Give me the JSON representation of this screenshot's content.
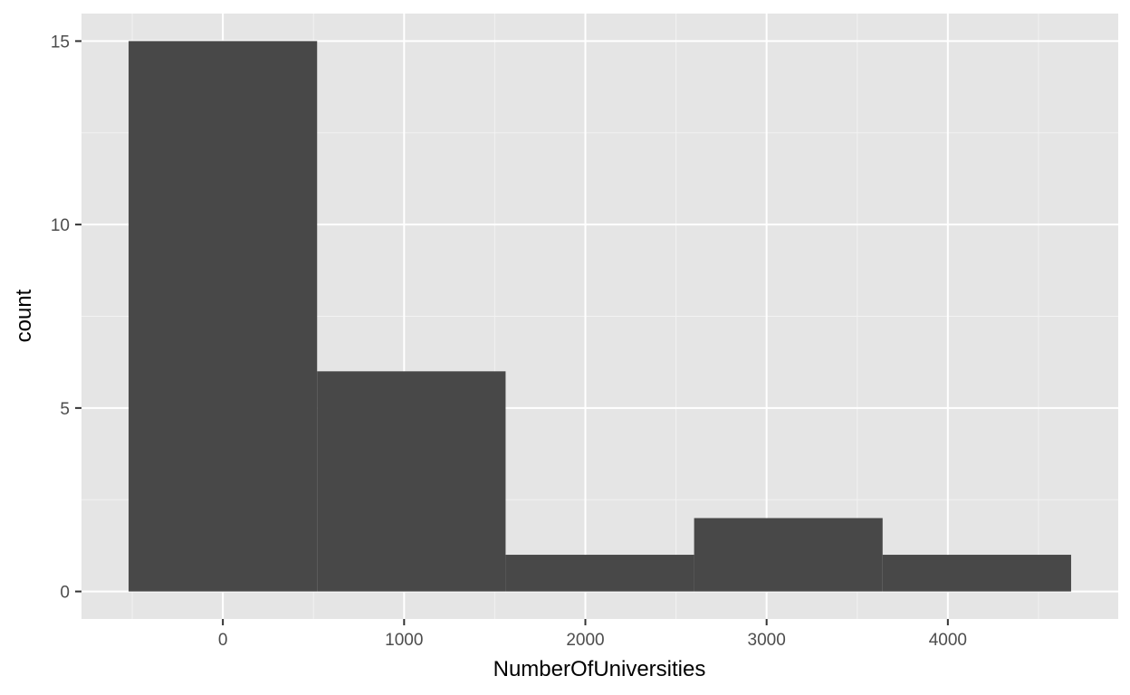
{
  "chart_data": {
    "type": "bar",
    "subtype": "histogram",
    "title": "",
    "xlabel": "NumberOfUniversities",
    "ylabel": "count",
    "bins": [
      {
        "x0": -520,
        "x1": 520,
        "count": 15
      },
      {
        "x0": 520,
        "x1": 1560,
        "count": 6
      },
      {
        "x0": 1560,
        "x1": 2600,
        "count": 1
      },
      {
        "x0": 2600,
        "x1": 3640,
        "count": 2
      },
      {
        "x0": 3640,
        "x1": 4680,
        "count": 1
      }
    ],
    "xlim": [
      -780,
      4940
    ],
    "ylim": [
      -0.75,
      15.75
    ],
    "x_ticks": [
      0,
      1000,
      2000,
      3000,
      4000
    ],
    "x_tick_labels": [
      "0",
      "1000",
      "2000",
      "3000",
      "4000"
    ],
    "y_ticks": [
      0,
      5,
      10,
      15
    ],
    "y_tick_labels": [
      "0",
      "5",
      "10",
      "15"
    ],
    "grid": true,
    "legend": "none",
    "colors": {
      "panel_background": "#e5e5e5",
      "grid_major": "#ffffff",
      "grid_minor": "#f2f2f2",
      "bar_fill": "#484848",
      "tick": "#333333",
      "tick_label": "#4d4d4d",
      "axis_title": "#000000"
    }
  }
}
